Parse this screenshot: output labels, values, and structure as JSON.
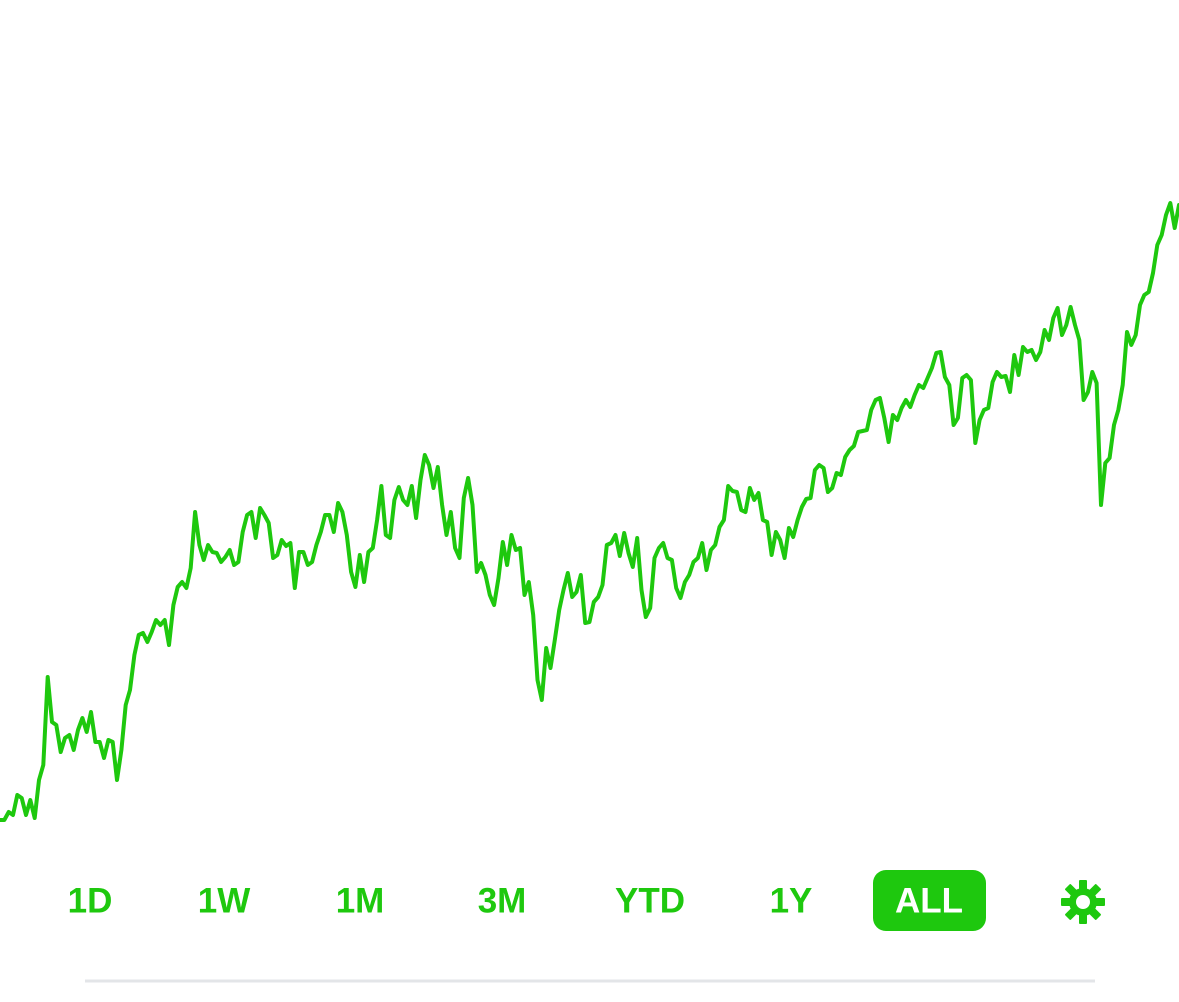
{
  "chart_data": {
    "type": "line",
    "color": "#1ec80e",
    "values": [
      180,
      180,
      188,
      185,
      205,
      202,
      185,
      200,
      182,
      220,
      235,
      323,
      278,
      275,
      248,
      262,
      265,
      250,
      270,
      282,
      268,
      288,
      258,
      258,
      242,
      260,
      258,
      220,
      250,
      295,
      310,
      345,
      365,
      367,
      358,
      368,
      380,
      375,
      380,
      355,
      395,
      413,
      418,
      412,
      432,
      488,
      455,
      440,
      455,
      448,
      447,
      438,
      443,
      450,
      435,
      438,
      468,
      485,
      488,
      462,
      492,
      485,
      477,
      442,
      445,
      460,
      454,
      457,
      412,
      448,
      448,
      435,
      438,
      455,
      468,
      485,
      485,
      468,
      497,
      488,
      465,
      428,
      413,
      445,
      418,
      448,
      452,
      480,
      514,
      465,
      462,
      500,
      513,
      500,
      495,
      514,
      482,
      520,
      545,
      535,
      512,
      533,
      495,
      465,
      488,
      452,
      442,
      502,
      522,
      495,
      428,
      437,
      425,
      405,
      395,
      422,
      458,
      435,
      465,
      450,
      452,
      405,
      418,
      385,
      320,
      300,
      352,
      332,
      360,
      390,
      410,
      427,
      403,
      408,
      425,
      377,
      378,
      398,
      403,
      415,
      455,
      457,
      465,
      444,
      467,
      447,
      433,
      462,
      410,
      383,
      392,
      442,
      452,
      457,
      442,
      440,
      412,
      402,
      418,
      425,
      438,
      442,
      457,
      430,
      450,
      455,
      473,
      480,
      514,
      509,
      508,
      490,
      488,
      512,
      500,
      507,
      480,
      478,
      445,
      468,
      460,
      442,
      472,
      463,
      480,
      493,
      501,
      502,
      530,
      535,
      532,
      508,
      512,
      527,
      525,
      543,
      550,
      554,
      568,
      569,
      570,
      590,
      600,
      602,
      582,
      558,
      585,
      580,
      592,
      600,
      593,
      605,
      615,
      612,
      622,
      632,
      647,
      648,
      623,
      615,
      575,
      582,
      622,
      625,
      620,
      557,
      580,
      590,
      592,
      618,
      628,
      623,
      624,
      608,
      645,
      625,
      653,
      648,
      650,
      640,
      648,
      670,
      660,
      682,
      692,
      665,
      675,
      693,
      675,
      660,
      600,
      608,
      628,
      617,
      495,
      537,
      542,
      575,
      590,
      615,
      668,
      655,
      665,
      695,
      705,
      708,
      727,
      755,
      765,
      785,
      797,
      772,
      795
    ]
  },
  "range_buttons": {
    "labels": [
      "1D",
      "1W",
      "1M",
      "3M",
      "YTD",
      "1Y",
      "ALL"
    ],
    "active_index": 6
  }
}
